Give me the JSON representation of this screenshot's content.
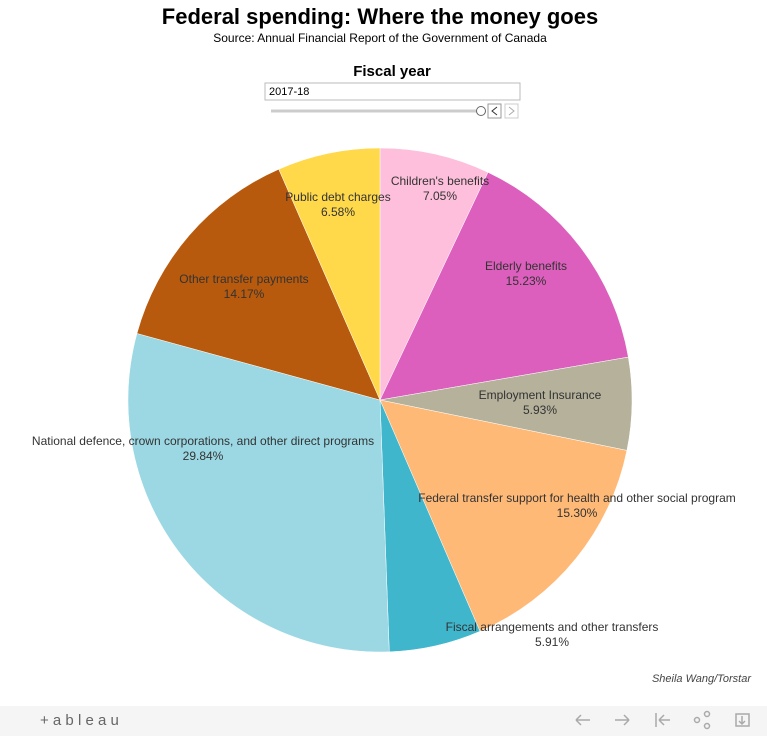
{
  "chart_data": {
    "type": "pie",
    "title": "Federal spending: Where the money goes",
    "subtitle": "Source: Annual Financial Report of the Government of Canada",
    "categories": [
      "Children's benefits",
      "Elderly benefits",
      "Employment Insurance",
      "Federal transfer support for health and other social program",
      "Fiscal arrangements and other transfers",
      "National defence, crown corporations, and other direct programs",
      "Other transfer payments",
      "Public debt charges"
    ],
    "values": [
      7.05,
      15.23,
      5.93,
      15.3,
      5.91,
      29.84,
      14.17,
      6.58
    ],
    "value_labels": [
      "7.05%",
      "15.23%",
      "5.93%",
      "15.30%",
      "5.91%",
      "29.84%",
      "14.17%",
      "6.58%"
    ],
    "colors": [
      "#fdbfdb",
      "#dc5fbd",
      "#b5b19b",
      "#ffb977",
      "#3fb6cc",
      "#9bd8e3",
      "#b85a0d",
      "#ffd94a"
    ]
  },
  "filter": {
    "label": "Fiscal year",
    "value": "2017-18"
  },
  "credit": "Sheila Wang/Torstar",
  "toolbar": {
    "brand": "+ a b l e a u"
  }
}
